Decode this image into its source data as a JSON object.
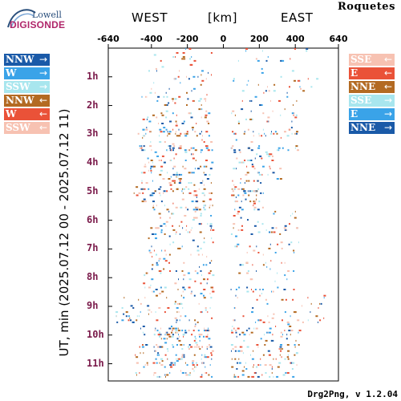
{
  "header": {
    "logo_top": "Lowell",
    "logo_bottom": "DIGISONDE",
    "west_label": "WEST",
    "unit_label": "[km]",
    "east_label": "EAST",
    "station": "Roquetes"
  },
  "legend_left": [
    {
      "label": "NNW",
      "arrow": "→",
      "color": "#1a5aa8"
    },
    {
      "label": "W",
      "arrow": "→",
      "color": "#3aa3e8"
    },
    {
      "label": "SSW",
      "arrow": "→",
      "color": "#a8e6ee"
    },
    {
      "label": "NNW",
      "arrow": "←",
      "color": "#b36a22"
    },
    {
      "label": "W",
      "arrow": "←",
      "color": "#ea5238"
    },
    {
      "label": "SSW",
      "arrow": "←",
      "color": "#f7c2b2"
    }
  ],
  "legend_right": [
    {
      "label": "SSE",
      "arrow": "←",
      "color": "#f7c2b2"
    },
    {
      "label": "E",
      "arrow": "←",
      "color": "#ea5238"
    },
    {
      "label": "NNE",
      "arrow": "←",
      "color": "#b36a22"
    },
    {
      "label": "SSE",
      "arrow": "→",
      "color": "#a8e6ee"
    },
    {
      "label": "E",
      "arrow": "→",
      "color": "#3aa3e8"
    },
    {
      "label": "NNE",
      "arrow": "→",
      "color": "#1a5aa8"
    }
  ],
  "footer": "Drg2Png, v 1.2.04",
  "chart_data": {
    "type": "scatter",
    "ylabel": "UT, min (2025.07.12 00 - 2025.07.12 11)",
    "xlim": [
      -640,
      640
    ],
    "xticks": [
      -640,
      -400,
      -200,
      0,
      200,
      400,
      640
    ],
    "xticklabels": [
      "-640",
      "-400",
      "-200",
      "0",
      "200",
      "400",
      "640"
    ],
    "ylim": [
      0,
      11.6
    ],
    "yticks": [
      1,
      2,
      3,
      4,
      5,
      6,
      7,
      8,
      9,
      10,
      11
    ],
    "yticklabels": [
      "1h",
      "2h",
      "3h",
      "4h",
      "5h",
      "6h",
      "7h",
      "8h",
      "9h",
      "10h",
      "11h"
    ],
    "grid": false,
    "colors": {
      "nnw_right": "#1a5aa8",
      "w_right": "#3aa3e8",
      "ssw_right": "#a8e6ee",
      "nnw_left": "#b36a22",
      "w_left": "#ea5238",
      "ssw_left": "#f7c2b2"
    },
    "activity_bands": [
      {
        "t_start": 0.0,
        "t_end": 1.6,
        "x_min": -420,
        "x_max": 520,
        "density": 0.25
      },
      {
        "t_start": 1.6,
        "t_end": 2.6,
        "x_min": -460,
        "x_max": 420,
        "density": 0.45
      },
      {
        "t_start": 2.6,
        "t_end": 3.6,
        "x_min": -480,
        "x_max": 420,
        "density": 0.95
      },
      {
        "t_start": 3.6,
        "t_end": 4.6,
        "x_min": -460,
        "x_max": 320,
        "density": 0.6
      },
      {
        "t_start": 4.6,
        "t_end": 5.6,
        "x_min": -500,
        "x_max": 220,
        "density": 0.8
      },
      {
        "t_start": 5.6,
        "t_end": 6.6,
        "x_min": -420,
        "x_max": 420,
        "density": 0.45
      },
      {
        "t_start": 6.6,
        "t_end": 7.6,
        "x_min": -420,
        "x_max": 420,
        "density": 0.35
      },
      {
        "t_start": 7.6,
        "t_end": 8.6,
        "x_min": -460,
        "x_max": 400,
        "density": 0.5
      },
      {
        "t_start": 8.6,
        "t_end": 9.6,
        "x_min": -600,
        "x_max": 560,
        "density": 0.8
      },
      {
        "t_start": 9.6,
        "t_end": 10.6,
        "x_min": -480,
        "x_max": 420,
        "density": 0.95
      },
      {
        "t_start": 10.6,
        "t_end": 11.5,
        "x_min": -500,
        "x_max": 420,
        "density": 0.85
      }
    ]
  }
}
